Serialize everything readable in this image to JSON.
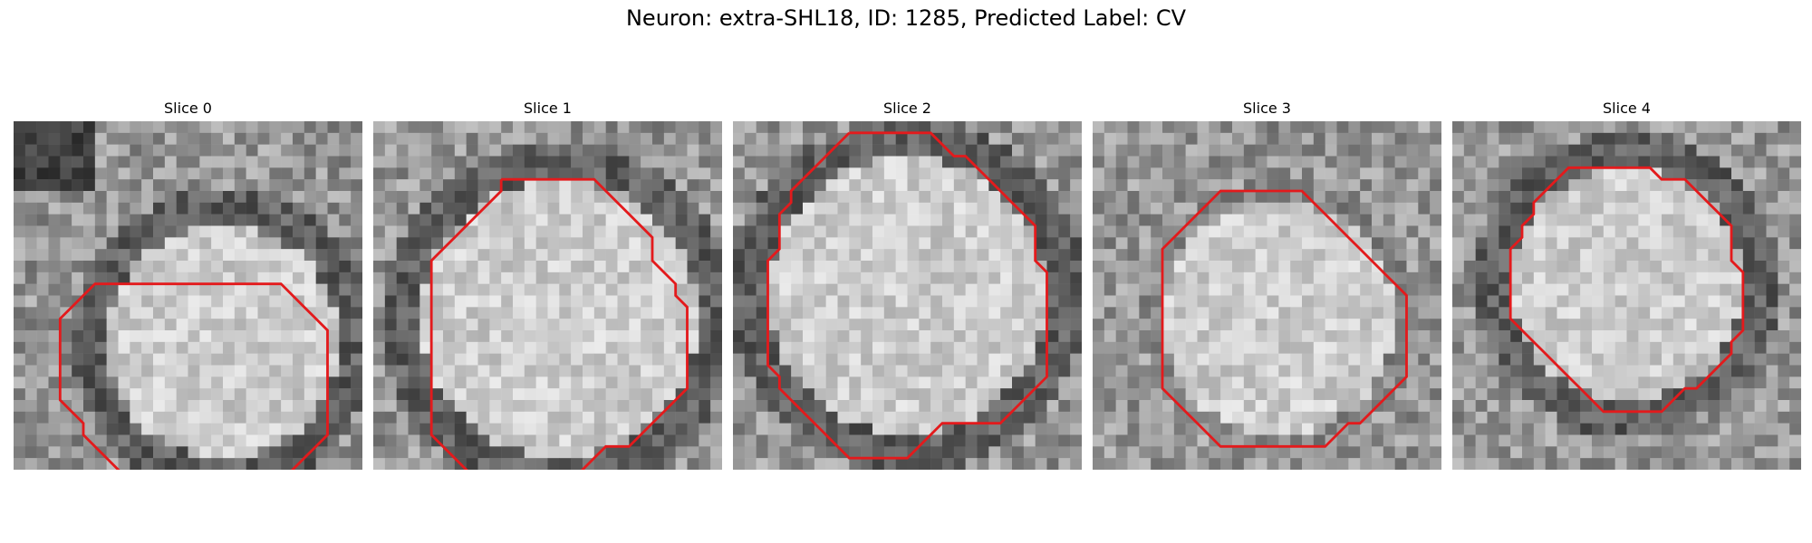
{
  "figure": {
    "title": "Neuron: extra-SHL18, ID: 1285, Predicted Label: CV"
  },
  "colors": {
    "contour": "#e31a1c",
    "background": "#ffffff"
  },
  "slices": [
    {
      "title": "Slice 0",
      "seed": 11,
      "contour": [
        [
          11,
          14
        ],
        [
          12,
          14
        ],
        [
          13,
          14
        ],
        [
          14,
          14
        ],
        [
          15,
          14
        ],
        [
          16,
          14
        ],
        [
          17,
          14
        ],
        [
          18,
          14
        ],
        [
          19,
          14
        ],
        [
          20,
          14
        ],
        [
          21,
          14
        ],
        [
          22,
          14
        ],
        [
          23,
          14
        ],
        [
          25,
          16
        ],
        [
          26,
          17
        ],
        [
          27,
          18
        ],
        [
          27,
          19
        ],
        [
          27,
          20
        ],
        [
          27,
          21
        ],
        [
          27,
          22
        ],
        [
          27,
          23
        ],
        [
          27,
          24
        ],
        [
          27,
          25
        ],
        [
          27,
          26
        ],
        [
          27,
          27
        ],
        [
          26,
          28
        ],
        [
          25,
          29
        ],
        [
          24,
          30
        ],
        [
          23,
          31
        ],
        [
          22,
          31
        ],
        [
          21,
          31
        ],
        [
          20,
          32
        ],
        [
          19,
          33
        ],
        [
          18,
          33
        ],
        [
          17,
          33
        ],
        [
          16,
          33
        ],
        [
          15,
          33
        ],
        [
          14,
          33
        ],
        [
          13,
          33
        ],
        [
          12,
          32
        ],
        [
          11,
          31
        ],
        [
          10,
          31
        ],
        [
          9,
          30
        ],
        [
          8,
          29
        ],
        [
          7,
          28
        ],
        [
          6,
          27
        ],
        [
          6,
          26
        ],
        [
          5,
          25
        ],
        [
          4,
          24
        ],
        [
          4,
          23
        ],
        [
          4,
          22
        ],
        [
          4,
          21
        ],
        [
          4,
          20
        ],
        [
          4,
          19
        ],
        [
          4,
          18
        ],
        [
          4,
          17
        ],
        [
          5,
          16
        ],
        [
          6,
          15
        ],
        [
          7,
          14
        ],
        [
          8,
          14
        ],
        [
          9,
          14
        ],
        [
          10,
          14
        ],
        [
          11,
          14
        ]
      ],
      "blob": [
        18,
        19,
        11
      ],
      "dark_ring": true
    },
    {
      "title": "Slice 1",
      "seed": 23,
      "contour": [
        [
          11,
          5
        ],
        [
          12,
          5
        ],
        [
          13,
          5
        ],
        [
          14,
          5
        ],
        [
          15,
          5
        ],
        [
          16,
          5
        ],
        [
          17,
          5
        ],
        [
          18,
          5
        ],
        [
          19,
          5
        ],
        [
          20,
          6
        ],
        [
          21,
          7
        ],
        [
          22,
          8
        ],
        [
          23,
          9
        ],
        [
          24,
          10
        ],
        [
          24,
          11
        ],
        [
          24,
          12
        ],
        [
          25,
          13
        ],
        [
          26,
          14
        ],
        [
          26,
          15
        ],
        [
          27,
          16
        ],
        [
          27,
          17
        ],
        [
          27,
          18
        ],
        [
          27,
          19
        ],
        [
          27,
          20
        ],
        [
          27,
          21
        ],
        [
          27,
          22
        ],
        [
          27,
          23
        ],
        [
          26,
          24
        ],
        [
          25,
          25
        ],
        [
          24,
          26
        ],
        [
          23,
          27
        ],
        [
          22,
          28
        ],
        [
          21,
          28
        ],
        [
          20,
          28
        ],
        [
          19,
          29
        ],
        [
          18,
          30
        ],
        [
          17,
          31
        ],
        [
          16,
          32
        ],
        [
          15,
          32
        ],
        [
          14,
          32
        ],
        [
          13,
          32
        ],
        [
          12,
          32
        ],
        [
          11,
          32
        ],
        [
          10,
          32
        ],
        [
          9,
          31
        ],
        [
          8,
          30
        ],
        [
          7,
          29
        ],
        [
          6,
          28
        ],
        [
          5,
          27
        ],
        [
          5,
          26
        ],
        [
          5,
          25
        ],
        [
          5,
          24
        ],
        [
          5,
          23
        ],
        [
          5,
          22
        ],
        [
          5,
          21
        ],
        [
          5,
          20
        ],
        [
          5,
          19
        ],
        [
          5,
          18
        ],
        [
          5,
          17
        ],
        [
          5,
          16
        ],
        [
          5,
          15
        ],
        [
          5,
          14
        ],
        [
          5,
          13
        ],
        [
          5,
          12
        ],
        [
          6,
          11
        ],
        [
          7,
          10
        ],
        [
          8,
          9
        ],
        [
          9,
          8
        ],
        [
          10,
          7
        ],
        [
          11,
          6
        ],
        [
          11,
          5
        ]
      ],
      "blob": [
        16,
        17,
        13
      ],
      "dark_ring": true
    },
    {
      "title": "Slice 2",
      "seed": 37,
      "contour": [
        [
          10,
          1
        ],
        [
          11,
          1
        ],
        [
          12,
          1
        ],
        [
          13,
          1
        ],
        [
          14,
          1
        ],
        [
          15,
          1
        ],
        [
          16,
          1
        ],
        [
          17,
          1
        ],
        [
          18,
          2
        ],
        [
          19,
          3
        ],
        [
          20,
          3
        ],
        [
          21,
          4
        ],
        [
          22,
          5
        ],
        [
          23,
          6
        ],
        [
          24,
          7
        ],
        [
          25,
          8
        ],
        [
          26,
          9
        ],
        [
          26,
          10
        ],
        [
          26,
          11
        ],
        [
          26,
          12
        ],
        [
          27,
          13
        ],
        [
          27,
          14
        ],
        [
          27,
          15
        ],
        [
          27,
          16
        ],
        [
          27,
          17
        ],
        [
          27,
          18
        ],
        [
          27,
          19
        ],
        [
          27,
          20
        ],
        [
          27,
          21
        ],
        [
          27,
          22
        ],
        [
          26,
          23
        ],
        [
          25,
          24
        ],
        [
          24,
          25
        ],
        [
          23,
          26
        ],
        [
          22,
          26
        ],
        [
          21,
          26
        ],
        [
          20,
          26
        ],
        [
          19,
          26
        ],
        [
          18,
          26
        ],
        [
          17,
          27
        ],
        [
          16,
          28
        ],
        [
          15,
          29
        ],
        [
          14,
          29
        ],
        [
          13,
          29
        ],
        [
          12,
          29
        ],
        [
          11,
          29
        ],
        [
          10,
          29
        ],
        [
          9,
          28
        ],
        [
          8,
          27
        ],
        [
          7,
          26
        ],
        [
          6,
          25
        ],
        [
          5,
          24
        ],
        [
          4,
          23
        ],
        [
          4,
          22
        ],
        [
          3,
          21
        ],
        [
          3,
          20
        ],
        [
          3,
          19
        ],
        [
          3,
          18
        ],
        [
          3,
          17
        ],
        [
          3,
          16
        ],
        [
          3,
          15
        ],
        [
          3,
          14
        ],
        [
          3,
          13
        ],
        [
          3,
          12
        ],
        [
          4,
          11
        ],
        [
          4,
          10
        ],
        [
          4,
          9
        ],
        [
          4,
          8
        ],
        [
          5,
          7
        ],
        [
          5,
          6
        ],
        [
          6,
          5
        ],
        [
          7,
          4
        ],
        [
          8,
          3
        ],
        [
          9,
          2
        ],
        [
          10,
          1
        ]
      ],
      "blob": [
        15,
        15,
        13
      ],
      "dark_ring": true
    },
    {
      "title": "Slice 3",
      "seed": 53,
      "contour": [
        [
          12,
          6
        ],
        [
          13,
          6
        ],
        [
          14,
          6
        ],
        [
          15,
          6
        ],
        [
          16,
          6
        ],
        [
          17,
          6
        ],
        [
          18,
          6
        ],
        [
          19,
          7
        ],
        [
          20,
          8
        ],
        [
          21,
          9
        ],
        [
          22,
          10
        ],
        [
          23,
          11
        ],
        [
          24,
          12
        ],
        [
          25,
          13
        ],
        [
          26,
          14
        ],
        [
          27,
          15
        ],
        [
          27,
          16
        ],
        [
          27,
          17
        ],
        [
          27,
          18
        ],
        [
          27,
          19
        ],
        [
          27,
          20
        ],
        [
          27,
          21
        ],
        [
          27,
          22
        ],
        [
          26,
          23
        ],
        [
          25,
          24
        ],
        [
          24,
          25
        ],
        [
          23,
          26
        ],
        [
          22,
          26
        ],
        [
          21,
          27
        ],
        [
          20,
          28
        ],
        [
          19,
          28
        ],
        [
          18,
          28
        ],
        [
          17,
          28
        ],
        [
          16,
          28
        ],
        [
          15,
          28
        ],
        [
          14,
          28
        ],
        [
          13,
          28
        ],
        [
          12,
          28
        ],
        [
          11,
          28
        ],
        [
          10,
          27
        ],
        [
          9,
          26
        ],
        [
          8,
          25
        ],
        [
          7,
          24
        ],
        [
          6,
          23
        ],
        [
          6,
          22
        ],
        [
          6,
          21
        ],
        [
          6,
          20
        ],
        [
          6,
          19
        ],
        [
          6,
          18
        ],
        [
          6,
          17
        ],
        [
          6,
          16
        ],
        [
          6,
          15
        ],
        [
          6,
          14
        ],
        [
          6,
          13
        ],
        [
          6,
          12
        ],
        [
          6,
          11
        ],
        [
          7,
          10
        ],
        [
          8,
          9
        ],
        [
          9,
          8
        ],
        [
          10,
          7
        ],
        [
          11,
          6
        ],
        [
          12,
          6
        ]
      ],
      "blob": [
        16,
        17,
        11
      ],
      "dark_ring": false
    },
    {
      "title": "Slice 4",
      "seed": 71,
      "contour": [
        [
          11,
          4
        ],
        [
          12,
          4
        ],
        [
          13,
          4
        ],
        [
          14,
          4
        ],
        [
          15,
          4
        ],
        [
          16,
          4
        ],
        [
          17,
          4
        ],
        [
          18,
          5
        ],
        [
          19,
          5
        ],
        [
          20,
          5
        ],
        [
          21,
          6
        ],
        [
          22,
          7
        ],
        [
          23,
          8
        ],
        [
          24,
          9
        ],
        [
          24,
          10
        ],
        [
          24,
          11
        ],
        [
          24,
          12
        ],
        [
          25,
          13
        ],
        [
          25,
          14
        ],
        [
          25,
          15
        ],
        [
          25,
          16
        ],
        [
          25,
          17
        ],
        [
          25,
          18
        ],
        [
          24,
          19
        ],
        [
          24,
          20
        ],
        [
          23,
          21
        ],
        [
          22,
          22
        ],
        [
          21,
          23
        ],
        [
          20,
          23
        ],
        [
          19,
          24
        ],
        [
          18,
          25
        ],
        [
          17,
          25
        ],
        [
          16,
          25
        ],
        [
          15,
          25
        ],
        [
          14,
          25
        ],
        [
          13,
          25
        ],
        [
          12,
          24
        ],
        [
          11,
          23
        ],
        [
          10,
          22
        ],
        [
          9,
          21
        ],
        [
          8,
          20
        ],
        [
          7,
          19
        ],
        [
          6,
          18
        ],
        [
          5,
          17
        ],
        [
          5,
          16
        ],
        [
          5,
          15
        ],
        [
          5,
          14
        ],
        [
          5,
          13
        ],
        [
          5,
          12
        ],
        [
          5,
          11
        ],
        [
          6,
          10
        ],
        [
          6,
          9
        ],
        [
          7,
          8
        ],
        [
          7,
          7
        ],
        [
          8,
          6
        ],
        [
          9,
          5
        ],
        [
          10,
          4
        ],
        [
          11,
          4
        ]
      ],
      "blob": [
        15,
        14,
        11
      ],
      "dark_ring": true
    }
  ]
}
